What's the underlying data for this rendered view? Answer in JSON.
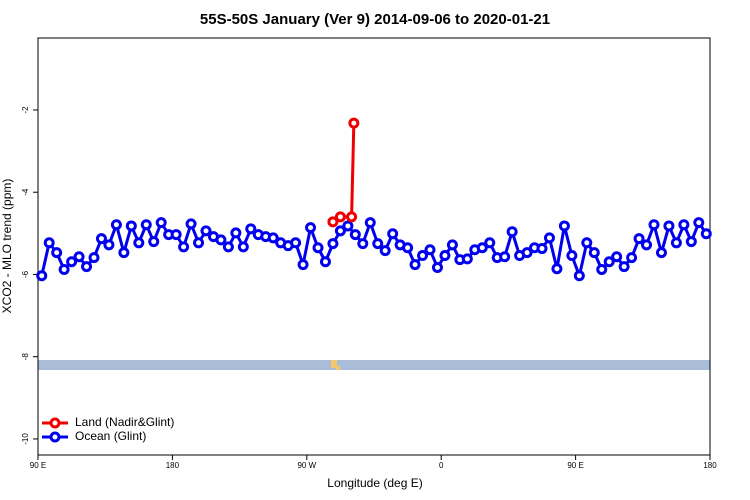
{
  "chart_data": {
    "type": "line",
    "title": "55S-50S January (Ver 9)   2014-09-06 to 2020-01-21",
    "x_label": "Longitude (deg E)",
    "y_label": "XCO2 - MLO trend (ppm)",
    "xlim": [
      90,
      540
    ],
    "ylim": [
      -10.39,
      -0.25
    ],
    "xticks": [
      {
        "value": 90,
        "label": "90 E"
      },
      180,
      {
        "value": 270,
        "label": "90 W"
      },
      {
        "value": 360,
        "label": "0"
      },
      {
        "value": 450,
        "label": "90 E"
      },
      {
        "value": 540,
        "label": "180"
      }
    ],
    "yticks": [
      -2,
      -4,
      -6,
      -8,
      -10
    ],
    "legend": "bottom-left",
    "series": [
      {
        "name": "Land (Nadir&Glint)",
        "color": "#ee0000",
        "x": [
          287.5,
          292.5,
          300,
          301.5
        ],
        "values": [
          -4.72,
          -4.6,
          -4.6,
          -2.32
        ]
      },
      {
        "name": "Ocean (Glint)",
        "color": "#0000ee",
        "x": [
          92.5,
          97.5,
          102.5,
          107.5,
          112.5,
          117.5,
          122.5,
          127.5,
          132.5,
          137.5,
          142.5,
          147.5,
          152.5,
          157.5,
          162.5,
          167.5,
          172.5,
          177.5,
          182.5,
          187.5,
          192.5,
          197.5,
          202.5,
          207.5,
          212.5,
          217.5,
          222.5,
          227.5,
          232.5,
          237.5,
          242.5,
          247.5,
          252.5,
          257.5,
          262.5,
          267.5,
          272.5,
          277.5,
          282.5,
          287.5,
          292.5,
          297.5,
          302.5,
          307.5,
          312.5,
          317.5,
          322.5,
          327.5,
          332.5,
          337.5,
          342.5,
          347.5,
          352.5,
          357.5,
          362.5,
          367.5,
          372.5,
          377.5,
          382.5,
          387.5,
          392.5,
          397.5,
          402.5,
          407.5,
          412.5,
          417.5,
          422.5,
          427.5,
          432.5,
          437.5,
          442.5,
          447.5,
          452.5,
          457.5,
          462.5,
          467.5,
          472.5,
          477.5,
          482.5,
          487.5,
          492.5,
          497.5,
          502.5,
          507.5,
          512.5,
          517.5,
          522.5,
          527.5,
          532.5,
          537.5
        ],
        "values": [
          -6.03,
          -5.23,
          -5.47,
          -5.88,
          -5.69,
          -5.57,
          -5.81,
          -5.59,
          -5.13,
          -5.28,
          -4.79,
          -5.47,
          -4.82,
          -5.23,
          -4.79,
          -5.2,
          -4.74,
          -5.03,
          -5.03,
          -5.33,
          -4.77,
          -5.23,
          -4.94,
          -5.08,
          -5.16,
          -5.33,
          -4.99,
          -5.33,
          -4.89,
          -5.03,
          -5.08,
          -5.11,
          -5.23,
          -5.3,
          -5.23,
          -5.76,
          -4.86,
          -5.35,
          -5.69,
          -5.25,
          -4.94,
          -4.82,
          -5.03,
          -5.25,
          -4.74,
          -5.25,
          -5.42,
          -5.01,
          -5.28,
          -5.35,
          -5.76,
          -5.54,
          -5.4,
          -5.83,
          -5.54,
          -5.28,
          -5.64,
          -5.62,
          -5.4,
          -5.35,
          -5.23,
          -5.59,
          -5.57,
          -4.96,
          -5.54,
          -5.47,
          -5.35,
          -5.37,
          -5.11,
          -5.86,
          -4.82,
          -5.54,
          -6.03,
          -5.23,
          -5.47,
          -5.88,
          -5.69,
          -5.57,
          -5.81,
          -5.59,
          -5.13,
          -5.28,
          -4.79,
          -5.47,
          -4.82,
          -5.23,
          -4.79,
          -5.2,
          -4.74,
          -5.01
        ]
      }
    ]
  }
}
